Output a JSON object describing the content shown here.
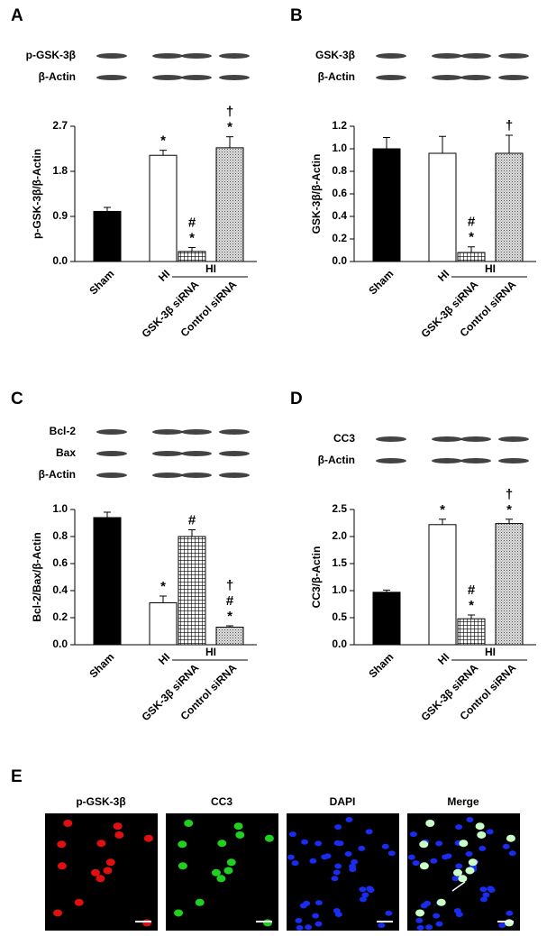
{
  "chart_data": [
    {
      "type": "bar",
      "panel": "A",
      "blot_labels": [
        "p-GSK-3β",
        "β-Actin"
      ],
      "y_label": "p-GSK-3β/β-Actin",
      "categories": [
        "Sham",
        "HI",
        "GSK-3β siRNA",
        "Control siRNA"
      ],
      "group_label": "HI",
      "values": [
        1.0,
        2.12,
        0.2,
        2.27
      ],
      "errors": [
        0.08,
        0.1,
        0.08,
        0.22
      ],
      "patterns": [
        "solid",
        "open",
        "grid",
        "stipple"
      ],
      "annotations": [
        null,
        [
          "*"
        ],
        [
          "#",
          "*"
        ],
        [
          "†",
          "*"
        ]
      ],
      "ylim": [
        0,
        2.7
      ],
      "yticks": [
        {
          "value": 0,
          "label": "0.0"
        },
        0.9,
        1.8,
        2.7
      ]
    },
    {
      "type": "bar",
      "panel": "B",
      "blot_labels": [
        "GSK-3β",
        "β-Actin"
      ],
      "y_label": "GSK-3β/β-Actin",
      "categories": [
        "Sham",
        "HI",
        "GSK-3β siRNA",
        "Control siRNA"
      ],
      "group_label": "HI",
      "values": [
        1.0,
        0.96,
        0.08,
        0.96
      ],
      "errors": [
        0.1,
        0.15,
        0.05,
        0.16
      ],
      "patterns": [
        "solid",
        "open",
        "grid",
        "stipple"
      ],
      "annotations": [
        null,
        null,
        [
          "#",
          "*"
        ],
        [
          "†"
        ]
      ],
      "ylim": [
        0,
        1.2
      ],
      "yticks": [
        {
          "value": 0,
          "label": "0.0"
        },
        0.2,
        0.4,
        0.6,
        0.8,
        {
          "value": 1,
          "label": "1.0"
        },
        1.2
      ]
    },
    {
      "type": "bar",
      "panel": "C",
      "blot_labels": [
        "Bcl-2",
        "Bax",
        "β-Actin"
      ],
      "y_label": "Bcl-2/Bax/β-Actin",
      "categories": [
        "Sham",
        "HI",
        "GSK-3β siRNA",
        "Control siRNA"
      ],
      "group_label": "HI",
      "values": [
        0.94,
        0.31,
        0.8,
        0.13
      ],
      "errors": [
        0.04,
        0.05,
        0.05,
        0.01
      ],
      "patterns": [
        "solid",
        "open",
        "grid",
        "stipple"
      ],
      "annotations": [
        null,
        [
          "*"
        ],
        [
          "#"
        ],
        [
          "†",
          "#",
          "*"
        ]
      ],
      "ylim": [
        0,
        1
      ],
      "yticks": [
        {
          "value": 0,
          "label": "0.0"
        },
        0.2,
        0.4,
        0.6,
        0.8,
        {
          "value": 1,
          "label": "1.0"
        }
      ]
    },
    {
      "type": "bar",
      "panel": "D",
      "blot_labels": [
        "CC3",
        "β-Actin"
      ],
      "y_label": "CC3/β-Actin",
      "categories": [
        "Sham",
        "HI",
        "GSK-3β siRNA",
        "Control siRNA"
      ],
      "group_label": "HI",
      "values": [
        0.97,
        2.22,
        0.48,
        2.24
      ],
      "errors": [
        0.04,
        0.1,
        0.07,
        0.08
      ],
      "patterns": [
        "solid",
        "open",
        "grid",
        "stipple"
      ],
      "annotations": [
        null,
        [
          "*"
        ],
        [
          "#",
          "*"
        ],
        [
          "†",
          "*"
        ]
      ],
      "ylim": [
        0,
        2.5
      ],
      "yticks": [
        {
          "value": 0,
          "label": "0.0"
        },
        0.5,
        {
          "value": 1,
          "label": "1.0"
        },
        1.5,
        {
          "value": 2,
          "label": "2.0"
        },
        2.5
      ]
    }
  ],
  "panel_e": {
    "panel": "E",
    "labels": [
      "p-GSK-3β",
      "CC3",
      "DAPI",
      "Merge"
    ]
  }
}
